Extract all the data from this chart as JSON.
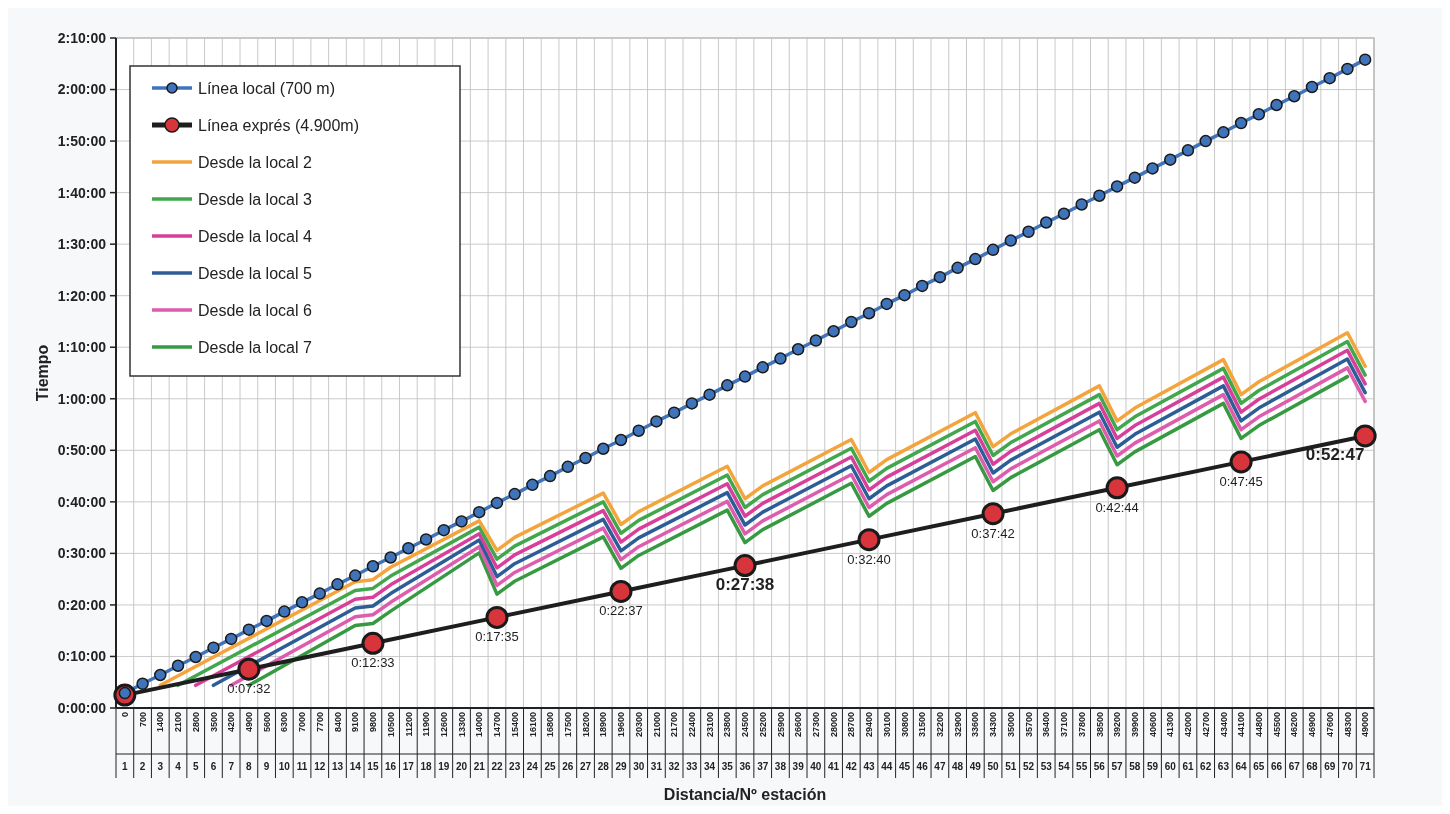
{
  "chart_data": {
    "type": "line",
    "xlabel": "Distancia/Nº estación",
    "ylabel": "Tiempo",
    "legend": "top left",
    "grid": true,
    "xlim": [
      -350,
      49350
    ],
    "xticks": [
      0,
      700,
      1400,
      2100,
      2800,
      3500,
      4200,
      4900,
      5600,
      6300,
      7000,
      7700,
      8400,
      9100,
      9800,
      10500,
      11200,
      11900,
      12600,
      13300,
      14000,
      14700,
      15400,
      16100,
      16800,
      17500,
      18200,
      18900,
      19600,
      20300,
      21000,
      21700,
      22400,
      23100,
      23800,
      24500,
      25200,
      25900,
      26600,
      27300,
      28000,
      28700,
      29400,
      30100,
      30800,
      31500,
      32200,
      32900,
      33600,
      34300,
      35000,
      35700,
      36400,
      37100,
      37800,
      38500,
      39200,
      39900,
      40600,
      41300,
      42000,
      42700,
      43400,
      44100,
      44800,
      45500,
      46200,
      46900,
      47600,
      48300,
      49000
    ],
    "x2lim": [
      0.5,
      71.5
    ],
    "x2ticks": [
      1,
      2,
      3,
      4,
      5,
      6,
      7,
      8,
      9,
      10,
      11,
      12,
      13,
      14,
      15,
      16,
      17,
      18,
      19,
      20,
      21,
      22,
      23,
      24,
      25,
      26,
      27,
      28,
      29,
      30,
      31,
      32,
      33,
      34,
      35,
      36,
      37,
      38,
      39,
      40,
      41,
      42,
      43,
      44,
      45,
      46,
      47,
      48,
      49,
      50,
      51,
      52,
      53,
      54,
      55,
      56,
      57,
      58,
      59,
      60,
      61,
      62,
      63,
      64,
      65,
      66,
      67,
      68,
      69,
      70,
      71
    ],
    "ylim": [
      0,
      130
    ],
    "yticks": [
      {
        "value": 0,
        "label": "0:00:00"
      },
      {
        "value": 10,
        "label": "0:10:00"
      },
      {
        "value": 20,
        "label": "0:20:00"
      },
      {
        "value": 30,
        "label": "0:30:00"
      },
      {
        "value": 40,
        "label": "0:40:00"
      },
      {
        "value": 50,
        "label": "0:50:00"
      },
      {
        "value": 60,
        "label": "1:00:00"
      },
      {
        "value": 70,
        "label": "1:10:00"
      },
      {
        "value": 80,
        "label": "1:20:00"
      },
      {
        "value": 90,
        "label": "1:30:00"
      },
      {
        "value": 100,
        "label": "1:40:00"
      },
      {
        "value": 110,
        "label": "1:50:00"
      },
      {
        "value": 120,
        "label": "2:00:00"
      },
      {
        "value": 130,
        "label": "2:10:00"
      }
    ],
    "series": [
      {
        "name": "Línea local (700 m)",
        "color": "#3f74bb",
        "marker": "circle",
        "x": [
          0,
          700,
          1400,
          2100,
          2800,
          3500,
          4200,
          4900,
          5600,
          6300,
          7000,
          7700,
          8400,
          9100,
          9800,
          10500,
          11200,
          11900,
          12600,
          13300,
          14000,
          14700,
          15400,
          16100,
          16800,
          17500,
          18200,
          18900,
          19600,
          20300,
          21000,
          21700,
          22400,
          23100,
          23800,
          24500,
          25200,
          25900,
          26600,
          27300,
          28000,
          28700,
          29400,
          30100,
          30800,
          31500,
          32200,
          32900,
          33600,
          34300,
          35000,
          35700,
          36400,
          37100,
          37800,
          38500,
          39200,
          39900,
          40600,
          41300,
          42000,
          42700,
          43400,
          44100,
          44800,
          45500,
          46200,
          46900,
          47600,
          48300,
          49000
        ],
        "values": [
          2.9,
          4.7,
          6.4,
          8.2,
          9.9,
          11.7,
          13.4,
          15.2,
          16.9,
          18.7,
          20.5,
          22.2,
          24.0,
          25.7,
          27.5,
          29.2,
          31.0,
          32.7,
          34.5,
          36.2,
          38.0,
          39.8,
          41.5,
          43.3,
          45.0,
          46.8,
          48.5,
          50.3,
          52.0,
          53.8,
          55.6,
          57.3,
          59.1,
          60.8,
          62.6,
          64.3,
          66.1,
          67.8,
          69.6,
          71.3,
          73.1,
          74.9,
          76.6,
          78.4,
          80.1,
          81.9,
          83.6,
          85.4,
          87.1,
          88.9,
          90.7,
          92.4,
          94.2,
          95.9,
          97.7,
          99.4,
          101.2,
          102.9,
          104.7,
          106.4,
          108.2,
          110.0,
          111.7,
          113.5,
          115.2,
          117.0,
          118.7,
          120.5,
          122.2,
          124.0,
          125.8
        ]
      },
      {
        "name": "Línea exprés (4.900m)",
        "color": "#1e1e1e",
        "marker": "circle",
        "x": [
          0,
          4900,
          9800,
          14700,
          19600,
          24500,
          29400,
          34300,
          39200,
          44100,
          49000
        ],
        "values": [
          2.5,
          7.533,
          12.55,
          17.583,
          22.617,
          27.633,
          32.667,
          37.7,
          42.733,
          47.75,
          52.783
        ],
        "value_labels": [
          null,
          "0:07:32",
          "0:12:33",
          "0:17:35",
          "0:22:37",
          "0:27:38",
          "0:32:40",
          "0:37:42",
          "0:42:44",
          "0:47:45",
          "0:52:47"
        ]
      },
      {
        "name": "Desde la local 2",
        "color": "#f4a43c",
        "x": [
          1400,
          9100,
          9800,
          10500,
          14000,
          14700,
          15400,
          18900,
          19600,
          20300,
          23800,
          24500,
          25200,
          28700,
          29400,
          30100,
          33600,
          34300,
          35000,
          38500,
          39200,
          39900,
          43400,
          44100,
          44800,
          48300,
          49000
        ],
        "values": [
          4.4,
          24.5,
          24.9,
          27.3,
          36.3,
          30.6,
          33.1,
          41.7,
          35.6,
          38.1,
          46.9,
          40.6,
          43.1,
          52.1,
          45.7,
          48.2,
          57.3,
          50.7,
          53.2,
          62.5,
          55.7,
          58.2,
          67.6,
          60.8,
          63.3,
          72.8,
          66.3
        ]
      },
      {
        "name": "Desde la local 3",
        "color": "#42a64c",
        "x": [
          2100,
          9100,
          9800,
          10500,
          14000,
          14700,
          15400,
          18900,
          19600,
          20300,
          23800,
          24500,
          25200,
          28700,
          29400,
          30100,
          33600,
          34300,
          35000,
          38500,
          39200,
          39900,
          43400,
          44100,
          44800,
          48300,
          49000
        ],
        "values": [
          4.4,
          22.8,
          23.2,
          25.6,
          35.1,
          28.9,
          31.4,
          40.0,
          33.9,
          36.4,
          45.2,
          38.9,
          41.4,
          50.4,
          44.0,
          46.5,
          55.6,
          49.0,
          51.5,
          60.8,
          54.0,
          56.5,
          65.9,
          59.1,
          61.6,
          71.1,
          64.6
        ]
      },
      {
        "name": "Desde la local 4",
        "color": "#d6409a",
        "x": [
          2800,
          9100,
          9800,
          10500,
          14000,
          14700,
          15400,
          18900,
          19600,
          20300,
          23800,
          24500,
          25200,
          28700,
          29400,
          30100,
          33600,
          34300,
          35000,
          38500,
          39200,
          39900,
          43400,
          44100,
          44800,
          48300,
          49000
        ],
        "values": [
          4.4,
          21.1,
          21.5,
          23.9,
          33.8,
          27.2,
          29.7,
          38.3,
          32.2,
          34.7,
          43.5,
          37.2,
          39.7,
          48.7,
          42.3,
          44.8,
          53.9,
          47.3,
          49.8,
          59.1,
          52.3,
          54.8,
          64.2,
          57.4,
          59.9,
          69.4,
          62.9
        ]
      },
      {
        "name": "Desde la local 5",
        "color": "#2c5d96",
        "x": [
          3500,
          9100,
          9800,
          10500,
          14000,
          14700,
          15400,
          18900,
          19600,
          20300,
          23800,
          24500,
          25200,
          28700,
          29400,
          30100,
          33600,
          34300,
          35000,
          38500,
          39200,
          39900,
          43400,
          44100,
          44800,
          48300,
          49000
        ],
        "values": [
          4.4,
          19.4,
          19.8,
          22.2,
          32.6,
          25.5,
          28.0,
          36.6,
          30.5,
          33.0,
          41.8,
          35.5,
          38.0,
          47.0,
          40.6,
          43.1,
          52.2,
          45.6,
          48.1,
          57.4,
          50.6,
          53.1,
          62.5,
          55.7,
          58.2,
          67.7,
          61.2
        ]
      },
      {
        "name": "Desde la local 6",
        "color": "#dd5cae",
        "x": [
          4200,
          9100,
          9800,
          10500,
          14000,
          14700,
          15400,
          18900,
          19600,
          20300,
          23800,
          24500,
          25200,
          28700,
          29400,
          30100,
          33600,
          34300,
          35000,
          38500,
          39200,
          39900,
          43400,
          44100,
          44800,
          48300,
          49000
        ],
        "values": [
          4.4,
          17.7,
          18.1,
          20.5,
          31.3,
          23.8,
          26.3,
          34.9,
          28.8,
          31.3,
          40.1,
          33.8,
          36.3,
          45.3,
          38.9,
          41.4,
          50.5,
          43.9,
          46.4,
          55.7,
          48.9,
          51.4,
          60.8,
          54.0,
          56.5,
          66.0,
          59.5
        ]
      },
      {
        "name": "Desde la local 7",
        "color": "#379a43",
        "x": [
          4900,
          9100,
          9800,
          10500,
          14000,
          14700,
          15400,
          18900,
          19600,
          20300,
          23800,
          24500,
          25200,
          28700,
          29400,
          30100,
          33600,
          34300,
          35000,
          38500,
          39200,
          39900,
          43400,
          44100,
          44800,
          48300
        ],
        "values": [
          4.4,
          16.0,
          16.4,
          18.8,
          30.1,
          22.1,
          24.6,
          33.2,
          27.1,
          29.6,
          38.4,
          32.1,
          34.6,
          43.6,
          37.2,
          39.7,
          48.8,
          42.2,
          44.7,
          54.0,
          47.2,
          49.7,
          59.1,
          52.3,
          54.8,
          64.3
        ]
      }
    ]
  }
}
